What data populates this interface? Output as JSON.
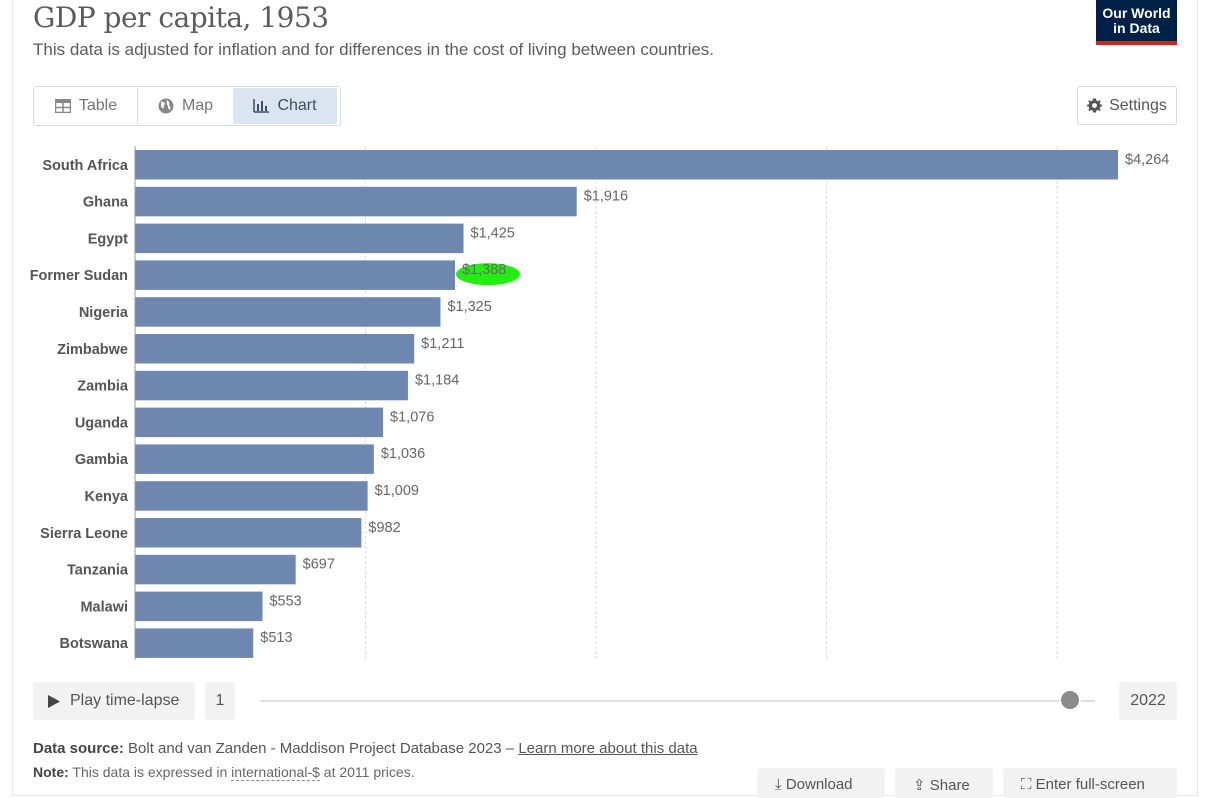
{
  "header": {
    "title": "GDP per capita, 1953",
    "subtitle": "This data is adjusted for inflation and for differences in the cost of living between countries.",
    "logo_line1": "Our World",
    "logo_line2": "in Data"
  },
  "tabs": [
    {
      "label": "Table",
      "icon": "table-icon"
    },
    {
      "label": "Map",
      "icon": "globe-icon"
    },
    {
      "label": "Chart",
      "icon": "bar-chart-icon",
      "selected": true
    }
  ],
  "settings_label": "Settings",
  "chart_data": {
    "type": "bar",
    "orientation": "horizontal",
    "categories": [
      "South Africa",
      "Ghana",
      "Egypt",
      "Former Sudan",
      "Nigeria",
      "Zimbabwe",
      "Zambia",
      "Uganda",
      "Gambia",
      "Kenya",
      "Sierra Leone",
      "Tanzania",
      "Malawi",
      "Botswana"
    ],
    "values": [
      4264,
      1916,
      1425,
      1388,
      1325,
      1211,
      1184,
      1076,
      1036,
      1009,
      982,
      697,
      553,
      513
    ],
    "value_labels": [
      "$4,264",
      "$1,916",
      "$1,425",
      "$1,388",
      "$1,325",
      "$1,211",
      "$1,184",
      "$1,076",
      "$1,036",
      "$1,009",
      "$982",
      "$697",
      "$553",
      "$513"
    ],
    "xlim": [
      0,
      4400
    ],
    "gridlines": [
      1000,
      2000,
      3000,
      4000
    ],
    "bar_color": "#6d87b1",
    "highlighted_label": "$1,388",
    "highlight_color": "#22ee11"
  },
  "timeline": {
    "play_label": "Play time-lapse",
    "start_label": "1",
    "end_label": "2022",
    "position": 0.97
  },
  "footer": {
    "source_prefix": "Data source:",
    "source_text": "Bolt and van Zanden - Maddison Project Database 2023 –",
    "source_link": "Learn more about this data",
    "note_prefix": "Note:",
    "note_text_1": "This data is expressed in",
    "note_term": "international-$",
    "note_text_2": "at 2011 prices.",
    "download_label": "Download",
    "share_label": "Share",
    "fullscreen_label": "Enter full-screen"
  }
}
